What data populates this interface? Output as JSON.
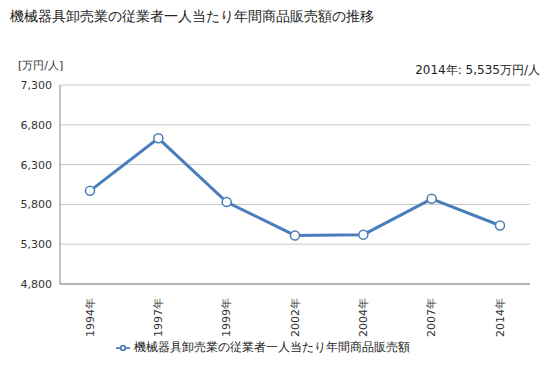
{
  "chart_data": {
    "type": "line",
    "title": "機械器具卸売業の従業者一人当たり年間商品販売額の推移",
    "y_label": "[万円/人]",
    "annotation": "2014年: 5,535万円/人",
    "categories": [
      "1994年",
      "1997年",
      "1999年",
      "2002年",
      "2004年",
      "2007年",
      "2014年"
    ],
    "series": [
      {
        "name": "機械器具卸売業の従業者一人当たり年間商品販売額",
        "color": "#4a7ebb",
        "marker": "circle",
        "values": [
          5970,
          6630,
          5830,
          5410,
          5420,
          5870,
          5535
        ]
      }
    ],
    "ylim": [
      4800,
      7300
    ],
    "yticks": [
      {
        "value": 4800,
        "label": "4,800"
      },
      {
        "value": 5300,
        "label": "5,300"
      },
      {
        "value": 5800,
        "label": "5,800"
      },
      {
        "value": 6300,
        "label": "6,300"
      },
      {
        "value": 6800,
        "label": "6,800"
      },
      {
        "value": 7300,
        "label": "7,300"
      }
    ],
    "grid": true,
    "legend": "bottom"
  }
}
